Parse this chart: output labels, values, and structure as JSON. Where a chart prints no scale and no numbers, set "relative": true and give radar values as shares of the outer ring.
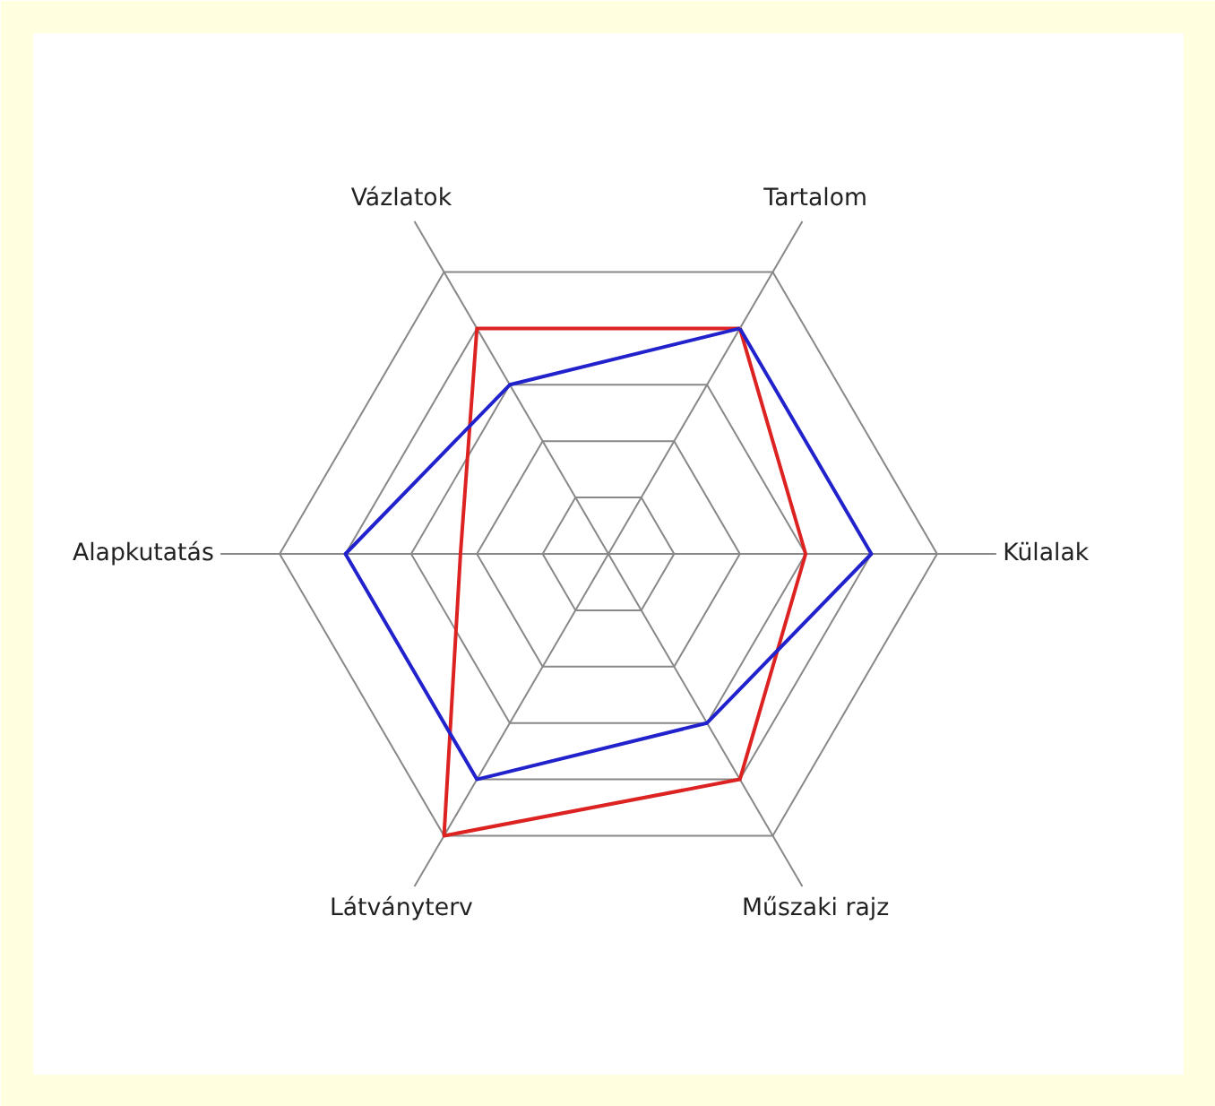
{
  "chart_data": {
    "type": "radar",
    "relative": true,
    "grid": true,
    "categories": [
      "Tartalom",
      "Külalak",
      "Műszaki rajz",
      "Látványterv",
      "Alapkutatás",
      "Vázlatok"
    ],
    "series": [
      {
        "color": "#dd2222",
        "values": [
          0.8,
          0.6,
          0.8,
          1.0,
          0.45,
          0.8
        ]
      },
      {
        "color": "#2222cc",
        "values": [
          0.8,
          0.8,
          0.6,
          0.8,
          0.8,
          0.6
        ]
      }
    ]
  }
}
